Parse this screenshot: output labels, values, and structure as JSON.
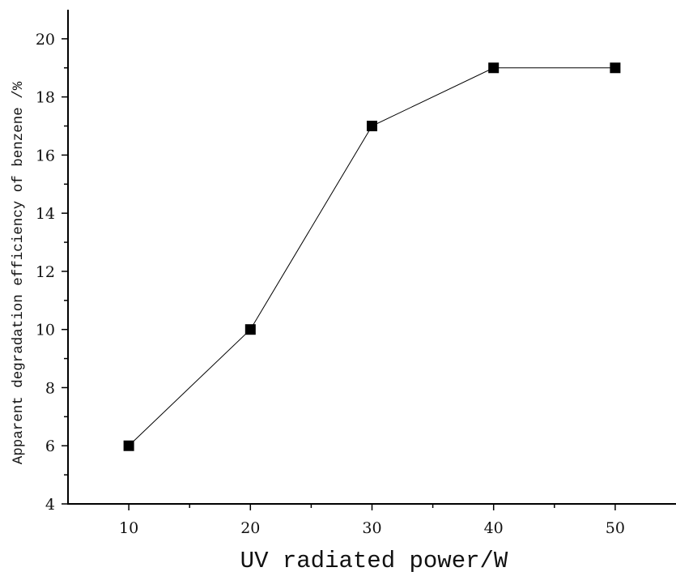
{
  "chart_data": {
    "type": "line",
    "title": "",
    "xlabel": "UV radiated power/W",
    "ylabel": "Apparent degradation efficiency of benzene /%",
    "x": [
      10,
      20,
      30,
      40,
      50
    ],
    "series": [
      {
        "values": [
          6,
          10,
          17,
          19,
          19
        ]
      }
    ],
    "xlim": [
      5,
      55
    ],
    "ylim": [
      4,
      21
    ],
    "xticks": [
      10,
      20,
      30,
      40,
      50
    ],
    "yticks": [
      4,
      6,
      8,
      10,
      12,
      14,
      16,
      18,
      20
    ],
    "xtick_labels": [
      "10",
      "20",
      "30",
      "40",
      "50"
    ],
    "ytick_labels": [
      "4",
      "6",
      "8",
      "10",
      "12",
      "14",
      "16",
      "18",
      "20"
    ],
    "marker": "square",
    "grid": false,
    "colors": {
      "line": "#000000",
      "marker": "#000000",
      "axis": "#000000"
    }
  }
}
